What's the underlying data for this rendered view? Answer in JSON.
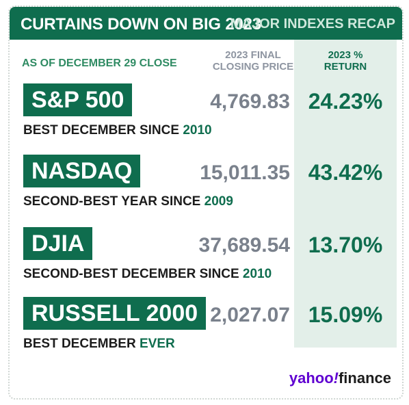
{
  "header": {
    "title": "CURTAINS DOWN ON BIG 2023",
    "recap": "MAJOR INDEXES RECAP"
  },
  "as_of": "AS OF DECEMBER 29 CLOSE",
  "columns": {
    "price_line1": "2023 FINAL",
    "price_line2": "CLOSING PRICE",
    "return_line1": "2023 %",
    "return_line2": "RETURN"
  },
  "rows": [
    {
      "name": "S&P 500",
      "price": "4,769.83",
      "return": "24.23%",
      "note": "BEST DECEMBER SINCE ",
      "note_highlight": "2010"
    },
    {
      "name": "NASDAQ",
      "price": "15,011.35",
      "return": "43.42%",
      "note": "SECOND-BEST YEAR SINCE ",
      "note_highlight": "2009"
    },
    {
      "name": "DJIA",
      "price": "37,689.54",
      "return": "13.70%",
      "note": "SECOND-BEST DECEMBER SINCE ",
      "note_highlight": "2010"
    },
    {
      "name": "RUSSELL 2000",
      "price": "2,027.07",
      "return": "15.09%",
      "note": "BEST DECEMBER ",
      "note_highlight": "EVER"
    }
  ],
  "logo": {
    "yahoo": "yahoo",
    "bang": "!",
    "finance": "finance"
  },
  "colors": {
    "brand_green": "#0f6d4e",
    "return_bg": "#e3efe9",
    "price_gray": "#7a818c",
    "yahoo_purple": "#5f01d1"
  }
}
